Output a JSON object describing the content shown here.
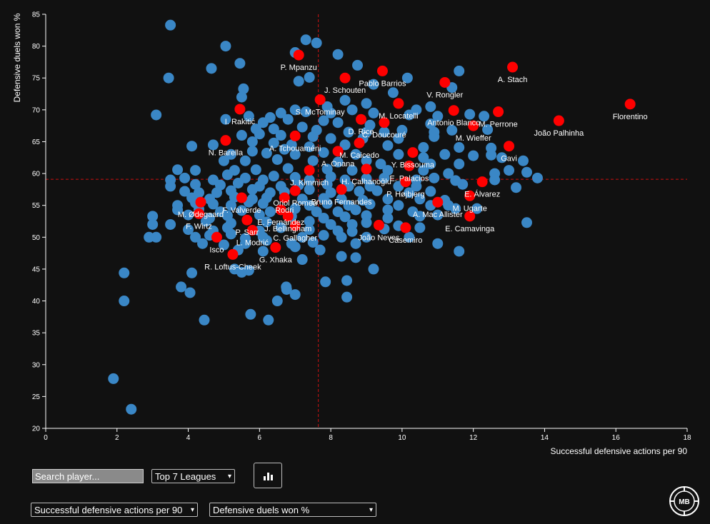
{
  "controls": {
    "search_placeholder": "Search player...",
    "league_select": "Top 7 Leagues",
    "x_select": "Successful defensive actions per 90",
    "y_select": "Defensive duels won %",
    "chart_button_icon": "bar-chart-icon",
    "logo_text": "MB"
  },
  "chart_data": {
    "type": "scatter",
    "xlabel": "Successful defensive actions per 90",
    "ylabel": "Defensive duels won %",
    "xlim": [
      0,
      18
    ],
    "ylim": [
      20,
      85
    ],
    "x_ticks": [
      0,
      2,
      4,
      6,
      8,
      10,
      12,
      14,
      16,
      18
    ],
    "y_ticks": [
      20,
      25,
      30,
      35,
      40,
      45,
      50,
      55,
      60,
      65,
      70,
      75,
      80,
      85
    ],
    "ref_lines": {
      "x": 7.65,
      "y": 59.1
    },
    "colors": {
      "background": "#111111",
      "highlight": "#ff0000",
      "others": "#3a87c6",
      "ref_line": "#cc1111"
    },
    "highlighted": [
      {
        "name": "P. Mpanzu",
        "x": 7.1,
        "y": 78.6
      },
      {
        "name": "A. Stach",
        "x": 13.1,
        "y": 76.7
      },
      {
        "name": "Pablo Barrios",
        "x": 9.45,
        "y": 76.1
      },
      {
        "name": "J. Schouten",
        "x": 8.4,
        "y": 75.0
      },
      {
        "name": "V. Rongler",
        "x": 11.2,
        "y": 74.3
      },
      {
        "name": "S. McTominay",
        "x": 7.7,
        "y": 71.6
      },
      {
        "name": "Florentino",
        "x": 16.4,
        "y": 70.9
      },
      {
        "name": "M. Locatelli",
        "x": 9.9,
        "y": 71.0
      },
      {
        "name": "I. Rakitić",
        "x": 5.45,
        "y": 70.1
      },
      {
        "name": "Antonio Blanco",
        "x": 11.45,
        "y": 69.9
      },
      {
        "name": "M. Perrone",
        "x": 12.7,
        "y": 69.7
      },
      {
        "name": "João Palhinha",
        "x": 14.4,
        "y": 68.3
      },
      {
        "name": "D. Rice",
        "x": 8.85,
        "y": 68.5
      },
      {
        "name": "C. Doucouré",
        "x": 9.5,
        "y": 68.0
      },
      {
        "name": "M. Wieffer",
        "x": 12.0,
        "y": 67.5
      },
      {
        "name": "N. Barella",
        "x": 5.05,
        "y": 65.2
      },
      {
        "name": "Y. Bissouma",
        "x": 10.3,
        "y": 63.3
      },
      {
        "name": "Gavi",
        "x": 13.0,
        "y": 64.3
      },
      {
        "name": "A. Tchouaméni",
        "x": 7.0,
        "y": 65.9
      },
      {
        "name": "A. Onana",
        "x": 8.2,
        "y": 63.5
      },
      {
        "name": "M. Caicedo",
        "x": 8.8,
        "y": 64.8
      },
      {
        "name": "E. Palacios",
        "x": 10.2,
        "y": 61.2
      },
      {
        "name": "J. Kimmich",
        "x": 7.4,
        "y": 60.5
      },
      {
        "name": "H. Çalhanoğlu",
        "x": 9.0,
        "y": 60.7
      },
      {
        "name": "P. Højbjerg",
        "x": 10.1,
        "y": 58.7
      },
      {
        "name": "E. Álvarez",
        "x": 12.25,
        "y": 58.7
      },
      {
        "name": "Bruno Fernandes",
        "x": 8.3,
        "y": 57.5
      },
      {
        "name": "F. Valverde",
        "x": 5.5,
        "y": 56.2
      },
      {
        "name": "Oriol Romeu",
        "x": 7.0,
        "y": 57.3
      },
      {
        "name": "Rodri",
        "x": 6.7,
        "y": 56.2
      },
      {
        "name": "A. Mac Allister",
        "x": 11.0,
        "y": 55.5
      },
      {
        "name": "M. Ugarte",
        "x": 11.9,
        "y": 56.5
      },
      {
        "name": "M. Ødegaard",
        "x": 4.35,
        "y": 55.5
      },
      {
        "name": "E. Fernández",
        "x": 6.6,
        "y": 54.3
      },
      {
        "name": "P. Sarr",
        "x": 5.65,
        "y": 52.7
      },
      {
        "name": "J. Bellingham",
        "x": 6.8,
        "y": 53.3
      },
      {
        "name": "E. Camavinga",
        "x": 11.9,
        "y": 53.3
      },
      {
        "name": "F. Wirtz",
        "x": 4.3,
        "y": 53.7
      },
      {
        "name": "João Neves",
        "x": 9.35,
        "y": 51.9
      },
      {
        "name": "Casemiro",
        "x": 10.1,
        "y": 51.5
      },
      {
        "name": "C. Gallagher",
        "x": 7.0,
        "y": 51.8
      },
      {
        "name": "L. Modrić",
        "x": 5.8,
        "y": 51.1
      },
      {
        "name": "Isco",
        "x": 4.8,
        "y": 50.0
      },
      {
        "name": "G. Xhaka",
        "x": 6.45,
        "y": 48.4
      },
      {
        "name": "R. Loftus-Cheek",
        "x": 5.25,
        "y": 47.3
      }
    ],
    "others": [
      [
        3.5,
        83.3
      ],
      [
        7.3,
        81.0
      ],
      [
        7.6,
        80.5
      ],
      [
        5.05,
        80.0
      ],
      [
        7.0,
        79.0
      ],
      [
        8.2,
        78.7
      ],
      [
        5.45,
        77.3
      ],
      [
        4.65,
        76.5
      ],
      [
        8.75,
        77.0
      ],
      [
        3.45,
        75.0
      ],
      [
        7.4,
        75.1
      ],
      [
        10.15,
        75.0
      ],
      [
        11.6,
        76.1
      ],
      [
        5.55,
        73.3
      ],
      [
        9.2,
        74.0
      ],
      [
        7.1,
        74.5
      ],
      [
        11.4,
        73.5
      ],
      [
        9.75,
        72.7
      ],
      [
        5.5,
        72.0
      ],
      [
        8.4,
        71.5
      ],
      [
        9.0,
        71.0
      ],
      [
        7.9,
        70.5
      ],
      [
        8.6,
        70.0
      ],
      [
        10.4,
        70.0
      ],
      [
        10.8,
        70.5
      ],
      [
        3.1,
        69.2
      ],
      [
        5.05,
        68.5
      ],
      [
        5.7,
        69.0
      ],
      [
        6.3,
        68.8
      ],
      [
        6.6,
        69.5
      ],
      [
        7.0,
        70.0
      ],
      [
        7.3,
        69.7
      ],
      [
        8.0,
        69.5
      ],
      [
        9.2,
        69.5
      ],
      [
        10.2,
        69.2
      ],
      [
        11.0,
        69.0
      ],
      [
        11.9,
        69.3
      ],
      [
        12.3,
        69.0
      ],
      [
        6.1,
        68.0
      ],
      [
        6.8,
        68.5
      ],
      [
        7.8,
        68.3
      ],
      [
        8.2,
        68.0
      ],
      [
        9.1,
        67.6
      ],
      [
        10.8,
        67.8
      ],
      [
        5.9,
        67.0
      ],
      [
        6.4,
        67.0
      ],
      [
        7.2,
        67.3
      ],
      [
        7.6,
        66.8
      ],
      [
        8.5,
        66.5
      ],
      [
        9.0,
        66.5
      ],
      [
        9.5,
        66.5
      ],
      [
        10.0,
        66.8
      ],
      [
        10.9,
        66.5
      ],
      [
        11.4,
        66.8
      ],
      [
        12.4,
        66.9
      ],
      [
        5.5,
        66.0
      ],
      [
        6.0,
        66.2
      ],
      [
        6.6,
        66.0
      ],
      [
        7.5,
        65.8
      ],
      [
        8.0,
        65.5
      ],
      [
        8.9,
        65.5
      ],
      [
        9.9,
        65.5
      ],
      [
        10.9,
        65.8
      ],
      [
        4.1,
        64.3
      ],
      [
        4.7,
        64.5
      ],
      [
        5.8,
        65.0
      ],
      [
        6.4,
        64.8
      ],
      [
        6.9,
        64.5
      ],
      [
        7.4,
        64.2
      ],
      [
        8.4,
        64.5
      ],
      [
        9.6,
        64.4
      ],
      [
        10.6,
        64.1
      ],
      [
        11.6,
        64.1
      ],
      [
        12.5,
        64.0
      ],
      [
        5.2,
        63.0
      ],
      [
        5.8,
        63.5
      ],
      [
        6.2,
        63.2
      ],
      [
        6.7,
        63.8
      ],
      [
        7.0,
        63.0
      ],
      [
        7.8,
        63.3
      ],
      [
        8.7,
        63.0
      ],
      [
        9.9,
        63.0
      ],
      [
        10.6,
        62.5
      ],
      [
        11.2,
        63.0
      ],
      [
        12.0,
        62.8
      ],
      [
        12.5,
        62.9
      ],
      [
        12.8,
        62.5
      ],
      [
        13.4,
        62.0
      ],
      [
        5.0,
        62.0
      ],
      [
        5.6,
        62.0
      ],
      [
        6.5,
        62.2
      ],
      [
        7.5,
        62.0
      ],
      [
        8.2,
        61.8
      ],
      [
        9.0,
        62.0
      ],
      [
        9.4,
        61.5
      ],
      [
        10.8,
        61.5
      ],
      [
        11.6,
        61.5
      ],
      [
        3.7,
        60.6
      ],
      [
        4.2,
        60.5
      ],
      [
        5.3,
        60.5
      ],
      [
        5.9,
        60.6
      ],
      [
        6.8,
        60.8
      ],
      [
        7.9,
        60.7
      ],
      [
        8.6,
        60.5
      ],
      [
        9.6,
        60.5
      ],
      [
        10.6,
        60.5
      ],
      [
        11.3,
        60.0
      ],
      [
        12.6,
        60.0
      ],
      [
        13.0,
        60.5
      ],
      [
        13.5,
        60.2
      ],
      [
        13.8,
        59.3
      ],
      [
        3.5,
        59.0
      ],
      [
        3.9,
        59.3
      ],
      [
        4.7,
        59.0
      ],
      [
        5.1,
        59.8
      ],
      [
        5.6,
        59.3
      ],
      [
        6.1,
        59.0
      ],
      [
        6.4,
        59.6
      ],
      [
        7.0,
        59.4
      ],
      [
        7.4,
        59.0
      ],
      [
        8.0,
        59.5
      ],
      [
        8.4,
        59.0
      ],
      [
        9.0,
        59.2
      ],
      [
        9.5,
        59.3
      ],
      [
        10.4,
        59.0
      ],
      [
        10.9,
        59.3
      ],
      [
        11.5,
        58.9
      ],
      [
        12.6,
        59.0
      ],
      [
        3.5,
        58.0
      ],
      [
        4.2,
        58.3
      ],
      [
        4.9,
        58.2
      ],
      [
        5.4,
        58.5
      ],
      [
        6.0,
        58.0
      ],
      [
        6.6,
        58.0
      ],
      [
        7.1,
        58.2
      ],
      [
        7.9,
        58.3
      ],
      [
        8.5,
        58.0
      ],
      [
        9.1,
        58.0
      ],
      [
        9.9,
        58.0
      ],
      [
        10.4,
        58.0
      ],
      [
        11.7,
        58.3
      ],
      [
        13.2,
        57.8
      ],
      [
        3.9,
        57.2
      ],
      [
        4.3,
        57.0
      ],
      [
        4.8,
        57.0
      ],
      [
        5.2,
        57.3
      ],
      [
        5.8,
        57.5
      ],
      [
        6.3,
        57.0
      ],
      [
        6.7,
        57.1
      ],
      [
        7.4,
        57.5
      ],
      [
        8.0,
        57.0
      ],
      [
        8.8,
        57.2
      ],
      [
        9.3,
        57.3
      ],
      [
        10.2,
        57.0
      ],
      [
        10.8,
        57.2
      ],
      [
        4.1,
        56.2
      ],
      [
        4.6,
        56.0
      ],
      [
        5.3,
        56.3
      ],
      [
        5.8,
        56.0
      ],
      [
        6.2,
        56.2
      ],
      [
        7.2,
        56.0
      ],
      [
        7.8,
        56.1
      ],
      [
        8.3,
        56.0
      ],
      [
        8.9,
        55.8
      ],
      [
        9.6,
        56.0
      ],
      [
        10.5,
        56.0
      ],
      [
        11.2,
        55.8
      ],
      [
        3.7,
        55.0
      ],
      [
        4.2,
        55.4
      ],
      [
        4.7,
        55.2
      ],
      [
        5.2,
        55.0
      ],
      [
        5.7,
        55.5
      ],
      [
        6.1,
        55.3
      ],
      [
        7.4,
        55.0
      ],
      [
        7.9,
        55.3
      ],
      [
        8.5,
        55.0
      ],
      [
        9.1,
        55.2
      ],
      [
        9.9,
        55.0
      ],
      [
        10.8,
        55.0
      ],
      [
        11.3,
        55.0
      ],
      [
        3.7,
        54.3
      ],
      [
        4.3,
        54.4
      ],
      [
        4.9,
        54.0
      ],
      [
        5.5,
        54.2
      ],
      [
        6.3,
        54.0
      ],
      [
        7.0,
        54.5
      ],
      [
        7.6,
        54.0
      ],
      [
        8.2,
        54.0
      ],
      [
        8.7,
        54.3
      ],
      [
        9.6,
        54.3
      ],
      [
        10.3,
        54.0
      ],
      [
        11.5,
        54.5
      ],
      [
        12.1,
        54.5
      ],
      [
        3.0,
        53.3
      ],
      [
        4.0,
        53.5
      ],
      [
        4.6,
        53.0
      ],
      [
        5.1,
        53.4
      ],
      [
        6.0,
        53.5
      ],
      [
        6.9,
        53.3
      ],
      [
        7.8,
        53.0
      ],
      [
        8.4,
        53.2
      ],
      [
        9.0,
        53.4
      ],
      [
        9.6,
        53.0
      ],
      [
        10.5,
        53.3
      ],
      [
        11.0,
        53.5
      ],
      [
        3.0,
        52.0
      ],
      [
        3.5,
        52.0
      ],
      [
        4.5,
        52.5
      ],
      [
        5.2,
        52.2
      ],
      [
        6.2,
        52.4
      ],
      [
        7.4,
        52.5
      ],
      [
        8.0,
        52.0
      ],
      [
        8.6,
        52.0
      ],
      [
        9.0,
        52.3
      ],
      [
        9.9,
        51.8
      ],
      [
        10.5,
        51.5
      ],
      [
        13.5,
        52.3
      ],
      [
        4.0,
        51.2
      ],
      [
        4.7,
        51.0
      ],
      [
        5.1,
        51.5
      ],
      [
        6.0,
        51.0
      ],
      [
        6.6,
        51.5
      ],
      [
        7.4,
        51.2
      ],
      [
        8.2,
        51.0
      ],
      [
        8.6,
        50.9
      ],
      [
        9.5,
        51.3
      ],
      [
        2.9,
        50.0
      ],
      [
        3.1,
        50.0
      ],
      [
        4.2,
        50.0
      ],
      [
        4.6,
        50.3
      ],
      [
        5.2,
        50.5
      ],
      [
        5.6,
        49.8
      ],
      [
        6.1,
        50.0
      ],
      [
        7.2,
        50.0
      ],
      [
        7.8,
        50.3
      ],
      [
        8.3,
        50.0
      ],
      [
        9.0,
        50.0
      ],
      [
        10.2,
        50.0
      ],
      [
        4.4,
        49.0
      ],
      [
        5.0,
        48.8
      ],
      [
        5.6,
        49.0
      ],
      [
        6.2,
        49.5
      ],
      [
        6.9,
        49.0
      ],
      [
        7.5,
        49.2
      ],
      [
        8.7,
        49.0
      ],
      [
        11.0,
        49.0
      ],
      [
        11.6,
        47.8
      ],
      [
        5.4,
        48.0
      ],
      [
        6.1,
        47.8
      ],
      [
        7.0,
        48.5
      ],
      [
        7.7,
        48.0
      ],
      [
        8.3,
        47.0
      ],
      [
        8.7,
        46.8
      ],
      [
        7.2,
        46.5
      ],
      [
        5.3,
        45.0
      ],
      [
        5.7,
        44.8
      ],
      [
        9.2,
        45.0
      ],
      [
        2.2,
        44.4
      ],
      [
        4.1,
        44.4
      ],
      [
        5.5,
        44.5
      ],
      [
        7.85,
        43.0
      ],
      [
        8.45,
        43.2
      ],
      [
        3.8,
        42.2
      ],
      [
        6.75,
        42.2
      ],
      [
        6.76,
        41.8
      ],
      [
        4.05,
        41.3
      ],
      [
        7.0,
        41.0
      ],
      [
        8.45,
        40.6
      ],
      [
        2.2,
        40.0
      ],
      [
        6.5,
        40.0
      ],
      [
        5.75,
        37.9
      ],
      [
        4.45,
        37.0
      ],
      [
        6.25,
        37.0
      ],
      [
        1.9,
        27.8
      ],
      [
        2.4,
        23.0
      ]
    ]
  }
}
